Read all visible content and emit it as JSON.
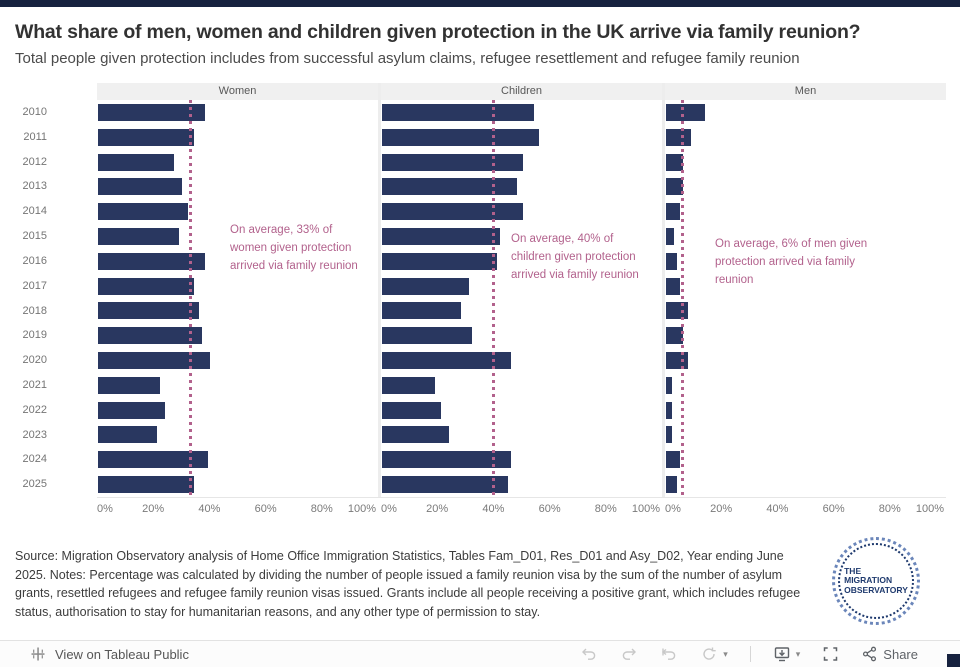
{
  "page": {
    "title": "What share of men, women and children given protection in the UK arrive via family reunion?",
    "subtitle": "Total people given protection includes from successful asylum claims, refugee resettlement and refugee family reunion"
  },
  "chart_data": {
    "type": "bar",
    "orientation": "horizontal",
    "title": "What share of men, women and children given protection in the UK arrive via family reunion?",
    "subtitle": "Total people given protection includes from successful asylum claims, refugee resettlement and refugee family reunion",
    "categories": [
      "2010",
      "2011",
      "2012",
      "2013",
      "2014",
      "2015",
      "2016",
      "2017",
      "2018",
      "2019",
      "2020",
      "2021",
      "2022",
      "2023",
      "2024",
      "2025"
    ],
    "series": [
      {
        "name": "Women",
        "values": [
          38,
          34,
          27,
          30,
          32,
          29,
          38,
          34,
          36,
          37,
          40,
          22,
          24,
          21,
          39,
          34
        ],
        "average_pct": 33,
        "annotation": "On average, 33% of women given protection arrived via family reunion"
      },
      {
        "name": "Children",
        "values": [
          54,
          56,
          50,
          48,
          50,
          42,
          41,
          31,
          28,
          32,
          46,
          19,
          21,
          24,
          46,
          45
        ],
        "average_pct": 40,
        "annotation": "On average, 40% of children given protection arrived via family reunion"
      },
      {
        "name": "Men",
        "values": [
          14,
          9,
          6,
          6,
          5,
          3,
          4,
          5,
          8,
          6,
          8,
          2,
          2,
          2,
          5,
          4
        ],
        "average_pct": 6,
        "annotation": "On average, 6% of men given protection arrived via family reunion"
      }
    ],
    "xlim": [
      0,
      100
    ],
    "tick_values": [
      0,
      20,
      40,
      60,
      80,
      100
    ],
    "tick_labels": [
      "0%",
      "20%",
      "40%",
      "60%",
      "80%",
      "100%"
    ],
    "grid": false,
    "legend": "none",
    "bar_color": "#293760",
    "annotation_color": "#b2618c"
  },
  "footer": {
    "text": "Source: Migration Observatory analysis of Home Office Immigration Statistics, Tables Fam_D01, Res_D01 and Asy_D02, Year ending June 2025. Notes: Percentage was calculated by dividing the number of people issued a family reunion visa by the sum of the number of asylum grants, resettled refugees and refugee family reunion visas issued. Grants include all people receiving a positive grant, which includes refugee status, authorisation to stay for humanitarian reasons, and any other type of permission to stay."
  },
  "logo": {
    "line1": "THE",
    "line2": "MIGRATION",
    "line3": "OBSERVATORY"
  },
  "toolbar": {
    "view_label": "View on Tableau Public",
    "share_label": "Share"
  }
}
